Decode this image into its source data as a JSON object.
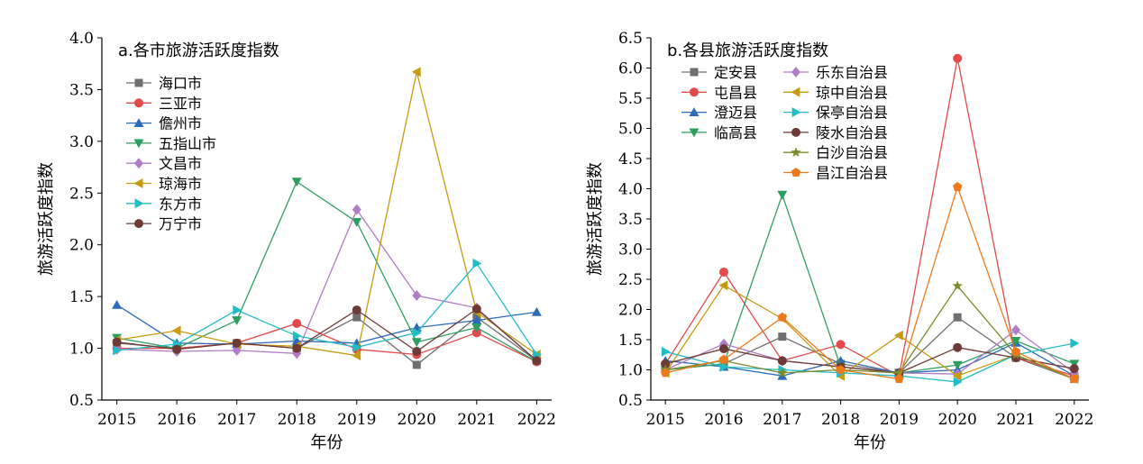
{
  "chart_data": [
    {
      "type": "line",
      "title": "a.各市旅游活跃度指数",
      "xlabel": "年份",
      "ylabel": "旅游活跃度指数",
      "ylim": [
        0.5,
        4.0
      ],
      "yticks": [
        "0.5",
        "1.0",
        "1.5",
        "2.0",
        "2.5",
        "3.0",
        "3.5",
        "4.0"
      ],
      "x": [
        "2015",
        "2016",
        "2017",
        "2018",
        "2019",
        "2020",
        "2021",
        "2022"
      ],
      "legend_position": "top-left",
      "series": [
        {
          "name": "海口市",
          "color": "#6f6f6f",
          "marker": "square",
          "values": [
            1.05,
            1.0,
            1.05,
            1.0,
            1.3,
            0.84,
            1.3,
            0.88
          ]
        },
        {
          "name": "三亚市",
          "color": "#e34a4a",
          "marker": "circle",
          "values": [
            1.0,
            1.0,
            1.05,
            1.24,
            0.99,
            0.94,
            1.15,
            0.87
          ]
        },
        {
          "name": "儋州市",
          "color": "#2b6cb8",
          "marker": "triangle-up",
          "values": [
            1.42,
            1.05,
            1.04,
            1.07,
            1.05,
            1.2,
            1.27,
            1.35
          ]
        },
        {
          "name": "五指山市",
          "color": "#2e9e5f",
          "marker": "triangle-down",
          "values": [
            1.1,
            1.0,
            1.27,
            2.61,
            2.22,
            1.06,
            1.2,
            0.87
          ]
        },
        {
          "name": "文昌市",
          "color": "#b07cc6",
          "marker": "diamond",
          "values": [
            0.99,
            0.97,
            0.98,
            0.95,
            2.34,
            1.51,
            1.39,
            0.88
          ]
        },
        {
          "name": "琼海市",
          "color": "#c89a10",
          "marker": "triangle-left",
          "values": [
            1.08,
            1.17,
            1.04,
            1.02,
            0.93,
            3.67,
            1.35,
            0.94
          ]
        },
        {
          "name": "东方市",
          "color": "#22bcc4",
          "marker": "triangle-right",
          "values": [
            0.98,
            1.04,
            1.37,
            1.12,
            1.01,
            1.15,
            1.82,
            0.94
          ]
        },
        {
          "name": "万宁市",
          "color": "#6e3a36",
          "marker": "circle",
          "values": [
            1.06,
            0.99,
            1.05,
            1.0,
            1.37,
            0.97,
            1.38,
            0.88
          ]
        }
      ]
    },
    {
      "type": "line",
      "title": "b.各县旅游活跃度指数",
      "xlabel": "年份",
      "ylabel": "旅游活跃度指数",
      "ylim": [
        0.5,
        6.5
      ],
      "yticks": [
        "0.5",
        "1.0",
        "1.5",
        "2.0",
        "2.5",
        "3.0",
        "3.5",
        "4.0",
        "4.5",
        "5.0",
        "5.5",
        "6.0",
        "6.5"
      ],
      "x": [
        "2015",
        "2016",
        "2017",
        "2018",
        "2019",
        "2020",
        "2021",
        "2022"
      ],
      "legend_position": "top-left",
      "series": [
        {
          "name": "定安县",
          "color": "#6f6f6f",
          "marker": "square",
          "values": [
            1.0,
            1.1,
            1.55,
            1.1,
            0.95,
            1.87,
            1.2,
            0.85
          ]
        },
        {
          "name": "屯昌县",
          "color": "#e34a4a",
          "marker": "circle",
          "values": [
            1.1,
            2.62,
            1.15,
            1.42,
            0.9,
            6.16,
            1.2,
            0.9
          ]
        },
        {
          "name": "澄迈县",
          "color": "#2b6cb8",
          "marker": "triangle-up",
          "values": [
            1.15,
            1.05,
            0.9,
            1.15,
            0.95,
            1.0,
            1.45,
            0.9
          ]
        },
        {
          "name": "临高县",
          "color": "#2e9e5f",
          "marker": "triangle-down",
          "values": [
            1.0,
            1.1,
            3.9,
            1.05,
            0.95,
            1.08,
            1.48,
            1.1
          ]
        },
        {
          "name": "乐东自治县",
          "color": "#b07cc6",
          "marker": "diamond",
          "values": [
            1.0,
            1.43,
            1.15,
            1.05,
            0.95,
            0.93,
            1.66,
            0.95
          ]
        },
        {
          "name": "琼中自治县",
          "color": "#c89a10",
          "marker": "triangle-left",
          "values": [
            0.95,
            2.4,
            1.85,
            0.9,
            1.57,
            0.9,
            1.25,
            0.85
          ]
        },
        {
          "name": "保亭自治县",
          "color": "#22bcc4",
          "marker": "triangle-right",
          "values": [
            1.3,
            1.05,
            1.0,
            0.95,
            0.9,
            0.8,
            1.25,
            1.44
          ]
        },
        {
          "name": "陵水自治县",
          "color": "#6e3a36",
          "marker": "circle",
          "values": [
            1.1,
            1.35,
            1.15,
            1.05,
            0.95,
            1.37,
            1.2,
            1.02
          ]
        },
        {
          "name": "白沙自治县",
          "color": "#7b8a2a",
          "marker": "star",
          "values": [
            1.0,
            1.15,
            0.95,
            1.0,
            0.95,
            2.39,
            1.25,
            0.85
          ]
        },
        {
          "name": "昌江自治县",
          "color": "#ec7a1c",
          "marker": "pentagon",
          "values": [
            0.95,
            1.17,
            1.87,
            1.0,
            0.85,
            4.03,
            1.3,
            0.85
          ]
        }
      ]
    }
  ]
}
